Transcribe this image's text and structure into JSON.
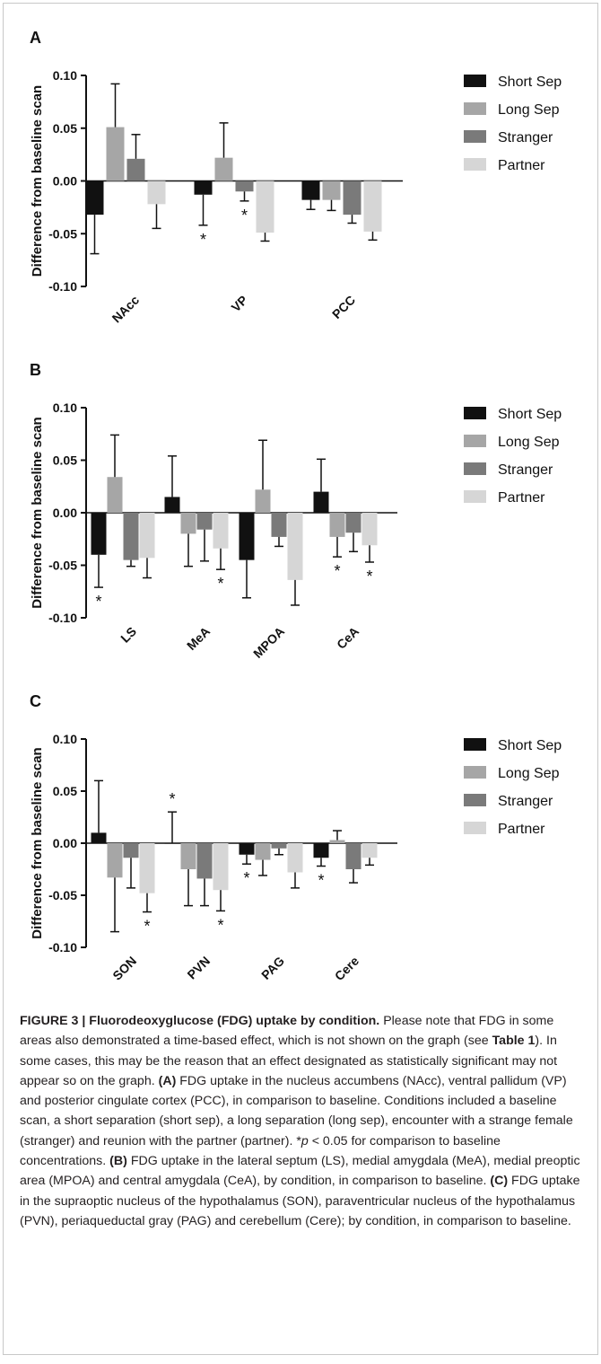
{
  "colors": {
    "Short Sep": "#111111",
    "Long Sep": "#a6a6a6",
    "Stranger": "#7a7a7a",
    "Partner": "#d6d6d6"
  },
  "chart_data": [
    {
      "panel": "A",
      "type": "bar",
      "ylabel": "Difference from baseline scan",
      "ylim": [
        -0.1,
        0.1
      ],
      "yticks": [
        "0.10",
        "0.05",
        "0.00",
        "-0.05",
        "-0.10"
      ],
      "categories": [
        "NAcc",
        "VP",
        "PCC"
      ],
      "legend": [
        "Short Sep",
        "Long Sep",
        "Stranger",
        "Partner"
      ],
      "series": [
        {
          "name": "Short Sep",
          "values": [
            -0.032,
            -0.013,
            -0.018
          ],
          "errors": [
            0.037,
            0.029,
            0.009
          ],
          "sig": [
            false,
            true,
            false
          ]
        },
        {
          "name": "Long Sep",
          "values": [
            0.051,
            0.022,
            -0.018
          ],
          "errors": [
            0.041,
            0.033,
            0.01
          ],
          "sig": [
            false,
            false,
            false
          ]
        },
        {
          "name": "Stranger",
          "values": [
            0.021,
            -0.01,
            -0.032
          ],
          "errors": [
            0.023,
            0.009,
            0.008
          ],
          "sig": [
            false,
            true,
            false
          ]
        },
        {
          "name": "Partner",
          "values": [
            -0.022,
            -0.049,
            -0.048
          ],
          "errors": [
            0.023,
            0.008,
            0.008
          ],
          "sig": [
            false,
            false,
            false
          ]
        }
      ]
    },
    {
      "panel": "B",
      "type": "bar",
      "ylabel": "Difference from baseline scan",
      "ylim": [
        -0.1,
        0.1
      ],
      "yticks": [
        "0.10",
        "0.05",
        "0.00",
        "-0.05",
        "-0.10"
      ],
      "categories": [
        "LS",
        "MeA",
        "MPOA",
        "CeA"
      ],
      "legend": [
        "Short Sep",
        "Long Sep",
        "Stranger",
        "Partner"
      ],
      "series": [
        {
          "name": "Short Sep",
          "values": [
            -0.04,
            0.015,
            -0.045,
            0.02
          ],
          "errors": [
            0.031,
            0.039,
            0.036,
            0.031
          ],
          "sig": [
            true,
            false,
            false,
            false
          ]
        },
        {
          "name": "Long Sep",
          "values": [
            0.034,
            -0.02,
            0.022,
            -0.023
          ],
          "errors": [
            0.04,
            0.031,
            0.047,
            0.019
          ],
          "sig": [
            false,
            false,
            false,
            true
          ]
        },
        {
          "name": "Stranger",
          "values": [
            -0.045,
            -0.016,
            -0.023,
            -0.019
          ],
          "errors": [
            0.006,
            0.03,
            0.009,
            0.018
          ],
          "sig": [
            false,
            false,
            false,
            false
          ]
        },
        {
          "name": "Partner",
          "values": [
            -0.043,
            -0.034,
            -0.064,
            -0.031
          ],
          "errors": [
            0.019,
            0.02,
            0.024,
            0.016
          ],
          "sig": [
            false,
            true,
            false,
            true
          ]
        }
      ]
    },
    {
      "panel": "C",
      "type": "bar",
      "ylabel": "Difference from baseline scan",
      "ylim": [
        -0.1,
        0.1
      ],
      "yticks": [
        "0.10",
        "0.05",
        "0.00",
        "-0.05",
        "-0.10"
      ],
      "categories": [
        "SON",
        "PVN",
        "PAG",
        "Cere"
      ],
      "legend": [
        "Short Sep",
        "Long Sep",
        "Stranger",
        "Partner"
      ],
      "series": [
        {
          "name": "Short Sep",
          "values": [
            0.01,
            0.0,
            -0.011,
            -0.014
          ],
          "errors": [
            0.05,
            0.03,
            0.009,
            0.008
          ],
          "sig": [
            false,
            true,
            true,
            true
          ]
        },
        {
          "name": "Long Sep",
          "values": [
            -0.033,
            -0.025,
            -0.016,
            0.003
          ],
          "errors": [
            0.052,
            0.035,
            0.015,
            0.009
          ],
          "sig": [
            false,
            false,
            false,
            false
          ]
        },
        {
          "name": "Stranger",
          "values": [
            -0.014,
            -0.034,
            -0.005,
            -0.025
          ],
          "errors": [
            0.029,
            0.026,
            0.006,
            0.013
          ],
          "sig": [
            false,
            false,
            false,
            false
          ]
        },
        {
          "name": "Partner",
          "values": [
            -0.048,
            -0.045,
            -0.028,
            -0.014
          ],
          "errors": [
            0.018,
            0.02,
            0.015,
            0.007
          ],
          "sig": [
            true,
            true,
            false,
            false
          ]
        }
      ]
    }
  ],
  "significance_marker": "*",
  "caption": {
    "title": "FIGURE 3 | Fluorodeoxyglucose (FDG) uptake by condition.",
    "s1": " Please note that FDG in some areas also demonstrated a time-based effect, which is not shown on the graph (see ",
    "table_ref": "Table 1",
    "s2": "). In some cases, this may be the reason that an effect designated as statistically significant may not appear so on the graph. ",
    "labelA": "(A)",
    "textA": " FDG uptake in the nucleus accumbens (NAcc), ventral pallidum (VP) and posterior cingulate cortex (PCC), in comparison to baseline. Conditions included a baseline scan, a short separation (short sep), a long separation (long sep), encounter with a strange female (stranger) and reunion with the partner (partner). *",
    "p_symbol": "p",
    "p_text": " < 0.05 for comparison to baseline concentrations. ",
    "labelB": "(B)",
    "textB": " FDG uptake in the lateral septum (LS), medial amygdala (MeA), medial preoptic area (MPOA) and central amygdala (CeA), by condition, in comparison to baseline. ",
    "labelC": "(C)",
    "textC": " FDG uptake in the supraoptic nucleus of the hypothalamus (SON), paraventricular nucleus of the hypothalamus (PVN), periaqueductal gray (PAG) and cerebellum (Cere); by condition, in comparison to baseline."
  }
}
